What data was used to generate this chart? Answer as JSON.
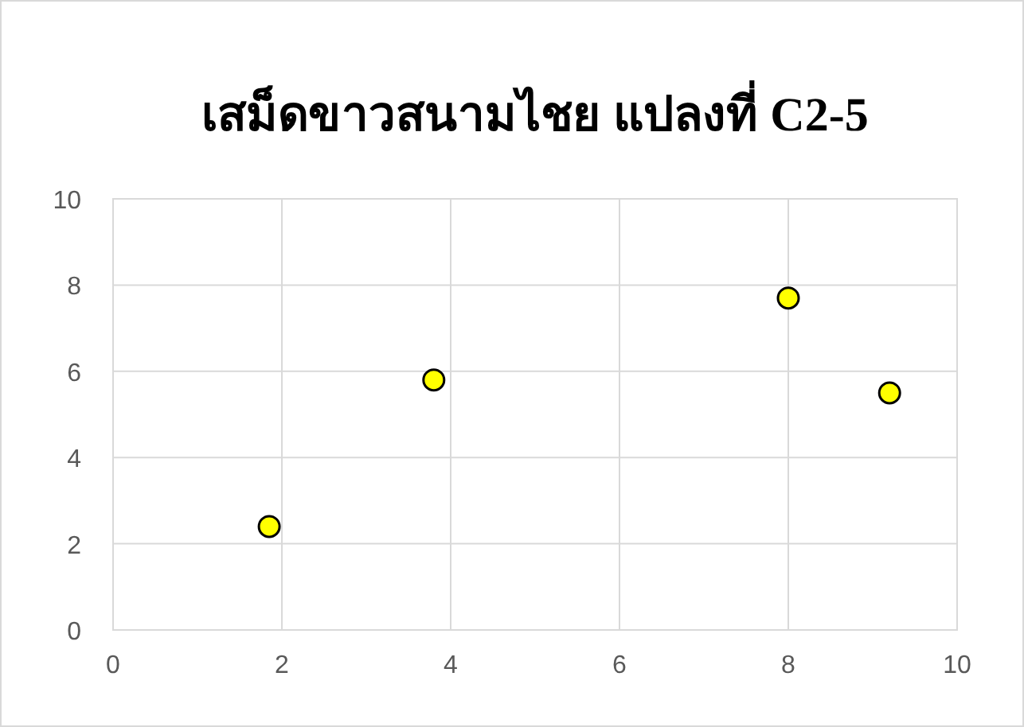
{
  "chart_data": {
    "type": "scatter",
    "title": "เสม็ดขาวสนามไชย แปลงที่ C2-5",
    "x": [
      1.85,
      3.8,
      8.0,
      9.2
    ],
    "series": [
      {
        "color": "#ffff00",
        "values": [
          2.4,
          5.8,
          7.7,
          5.5
        ]
      }
    ],
    "marker": "circle",
    "grid": true,
    "xlim": [
      0,
      10
    ],
    "ylim": [
      0,
      10
    ],
    "xticks": [
      0,
      2,
      4,
      6,
      8,
      10
    ],
    "yticks": [
      0,
      2,
      4,
      6,
      8,
      10
    ]
  }
}
